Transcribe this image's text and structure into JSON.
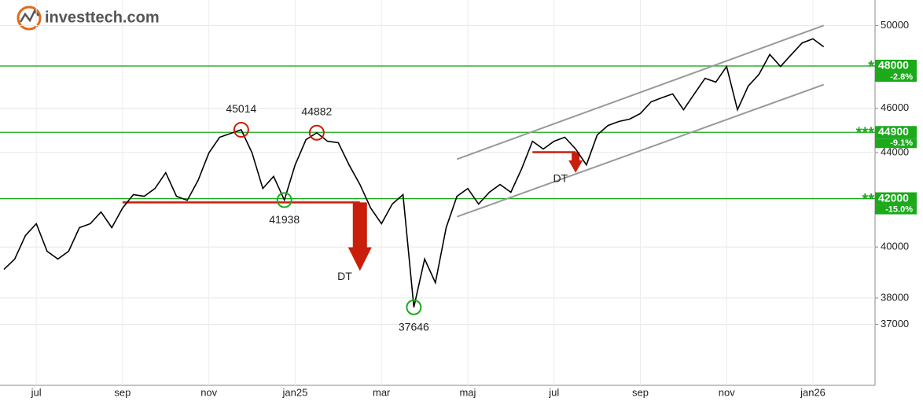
{
  "logo": "investtech.com",
  "chart_data": {
    "type": "line",
    "log_scale": true,
    "grid": true,
    "ylim": [
      34800,
      51300
    ],
    "yticks": [
      37000,
      38000,
      40000,
      42000,
      44000,
      46000,
      48000,
      50000
    ],
    "categories": [
      null,
      null,
      null,
      "jul",
      null,
      null,
      null,
      null,
      null,
      null,
      null,
      "sep",
      null,
      null,
      null,
      null,
      null,
      null,
      null,
      "nov",
      null,
      null,
      null,
      null,
      null,
      null,
      null,
      "jan25",
      null,
      null,
      null,
      null,
      null,
      null,
      null,
      "mar",
      null,
      null,
      null,
      null,
      null,
      null,
      null,
      "maj",
      null,
      null,
      null,
      null,
      null,
      null,
      null,
      "jul",
      null,
      null,
      null,
      null,
      null,
      null,
      null,
      "sep",
      null,
      null,
      null,
      null,
      null,
      null,
      null,
      "nov",
      null,
      null,
      null,
      null,
      null,
      null,
      null,
      "jan26",
      null
    ],
    "series": [
      {
        "color": "#000000",
        "values": [
          39110,
          39520,
          40470,
          40950,
          39830,
          39520,
          39830,
          40790,
          40950,
          41440,
          40790,
          41600,
          42170,
          42100,
          42430,
          43110,
          42100,
          41930,
          42780,
          43980,
          44680,
          44850,
          45014,
          43980,
          42430,
          42950,
          41938,
          43450,
          44570,
          44882,
          44500,
          44430,
          43450,
          42600,
          41600,
          40950,
          41770,
          42170,
          37646,
          39520,
          38590,
          40790,
          42100,
          42430,
          41770,
          42270,
          42600,
          42270,
          43290,
          44500,
          44150,
          44500,
          44680,
          44150,
          43450,
          44780,
          45210,
          45390,
          45500,
          45760,
          46300,
          46490,
          46670,
          45930,
          46670,
          47410,
          47230,
          47980,
          45930,
          47040,
          47600,
          48560,
          47980,
          48560,
          49130,
          49330,
          48940
        ]
      }
    ],
    "annotations": [
      {
        "value": 45014,
        "color": "#c81e0b"
      },
      {
        "value": 41938,
        "color": "#1aaa1a"
      },
      {
        "value": 44882,
        "color": "#c81e0b"
      },
      {
        "value": 37646,
        "color": "#1aaa1a"
      }
    ],
    "levels": [
      {
        "value": 48000,
        "stars": "*",
        "change": "-2.8%"
      },
      {
        "value": 44900,
        "stars": "***",
        "change": "-9.1%"
      },
      {
        "value": 42000,
        "stars": "**",
        "change": "-15.0%"
      }
    ],
    "level_color": "#1aaa1a",
    "trendlines": [
      {
        "from": 42,
        "to": 76,
        "start": 43700,
        "end": 50000
      },
      {
        "from": 42,
        "to": 76,
        "start": 41240,
        "end": 47110
      }
    ],
    "trend_color": "#999999",
    "patterns": [
      {
        "label": "DT",
        "from": 11,
        "to": 33,
        "level": 41840,
        "target": 39050
      },
      {
        "label": "DT",
        "from": 49,
        "to": 53,
        "level": 44010,
        "target": 43110
      }
    ],
    "pattern_color": "#c81e0b"
  }
}
